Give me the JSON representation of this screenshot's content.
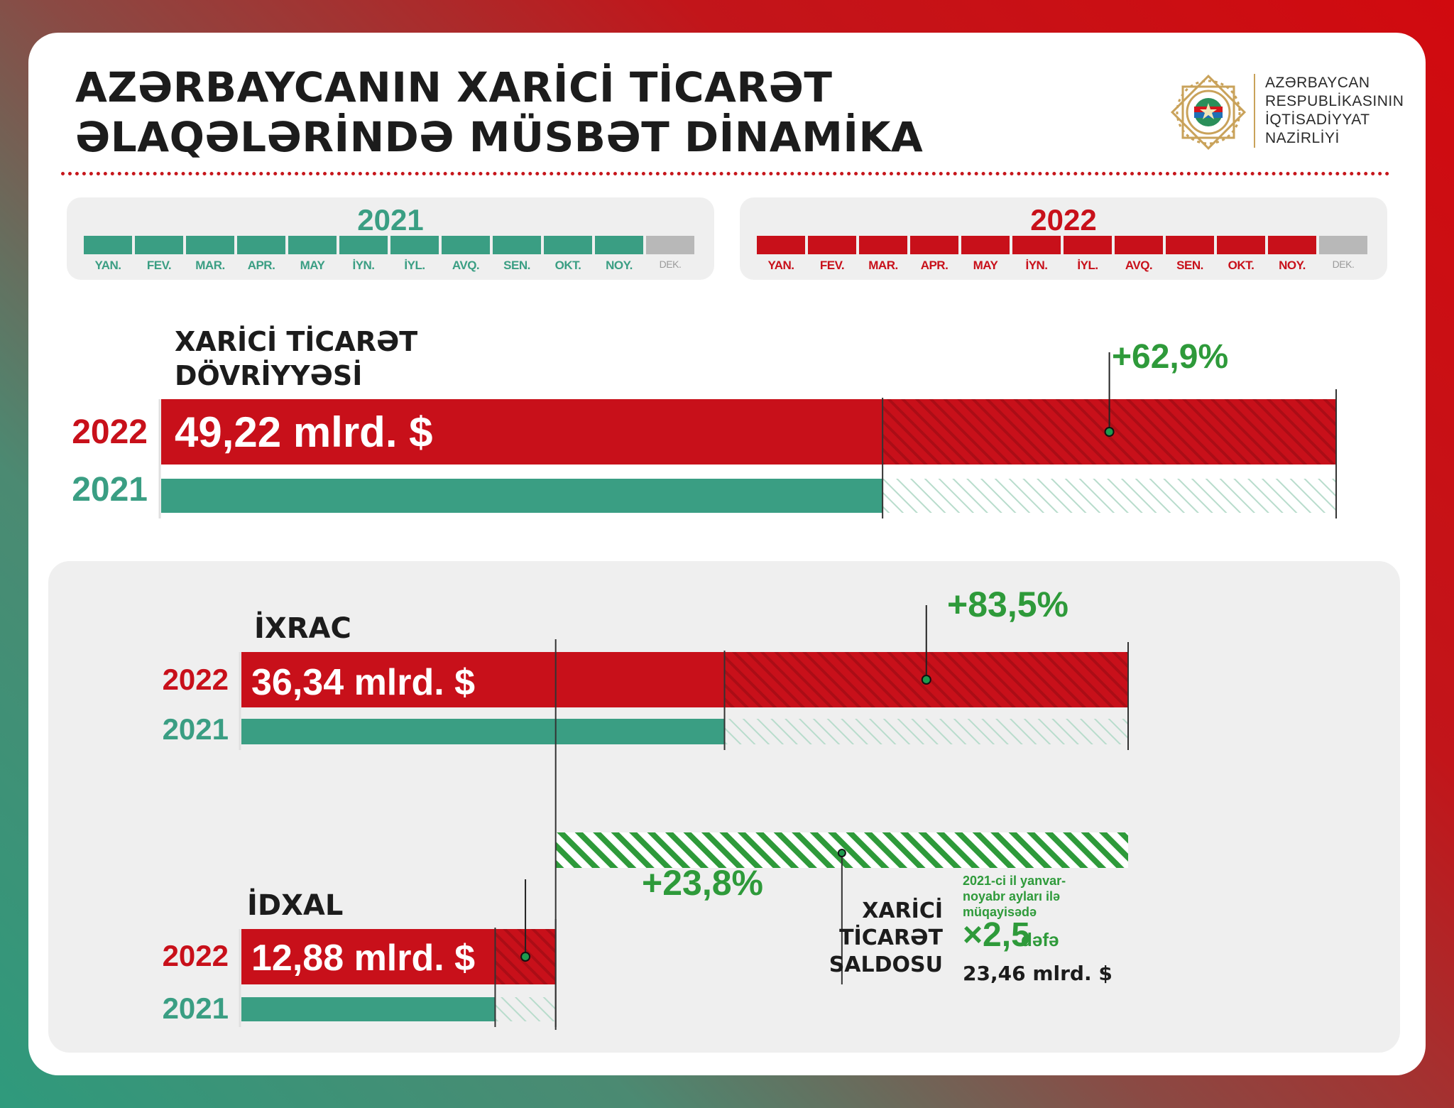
{
  "title": {
    "line1": "AZƏRBAYCANIN XARİCİ TİCARƏT",
    "line2": "ƏLAQƏLƏRİNDƏ MÜSBƏT DİNAMİKA"
  },
  "ministry": {
    "lines": [
      "AZƏRBAYCAN",
      "RESPUBLİKASININ",
      "İQTİSADİYYAT",
      "NAZİRLİYİ"
    ]
  },
  "colors": {
    "red": "#c8101a",
    "teal": "#3a9e83",
    "green_text": "#2e9a3a",
    "inactive": "#b8b8b8",
    "dark": "#1c1c1c"
  },
  "periods": [
    {
      "year": "2021",
      "color": "#3a9e83",
      "active_months": 11
    },
    {
      "year": "2022",
      "color": "#c8101a",
      "active_months": 11
    }
  ],
  "months": [
    "YAN.",
    "FEV.",
    "MAR.",
    "APR.",
    "MAY",
    "İYN.",
    "İYL.",
    "AVQ.",
    "SEN.",
    "OKT.",
    "NOY.",
    "DEK."
  ],
  "chart_data": {
    "type": "bar",
    "unit": "mlrd. $",
    "series": [
      {
        "name": "2022",
        "color": "#c8101a"
      },
      {
        "name": "2021",
        "color": "#3a9e83"
      }
    ],
    "groups": [
      {
        "label_lines": [
          "XARİCİ TİCARƏT",
          "DÖVRİYYƏSİ"
        ],
        "value_2022": 49.22,
        "value_2021": 30.22,
        "value_2022_label": "49,22 mlrd. $",
        "growth_label": "+62,9%"
      },
      {
        "label_lines": [
          "İXRAC"
        ],
        "value_2022": 36.34,
        "value_2021": 19.8,
        "value_2022_label": "36,34 mlrd. $",
        "growth_label": "+83,5%"
      },
      {
        "label_lines": [
          "İDXAL"
        ],
        "value_2022": 12.88,
        "value_2021": 10.4,
        "value_2022_label": "12,88 mlrd. $",
        "growth_label": "+23,8%"
      }
    ],
    "balance": {
      "label_lines": [
        "XARİCİ",
        "TİCARƏT",
        "SALDOSU"
      ],
      "value": 23.46,
      "note_lines": [
        "2021-ci il yanvar-",
        "noyabr ayları ilə",
        "müqayisədə"
      ],
      "multiplier": "×2,5",
      "multiplier_word": "dəfə",
      "value_label": "23,46 mlrd. $"
    }
  }
}
